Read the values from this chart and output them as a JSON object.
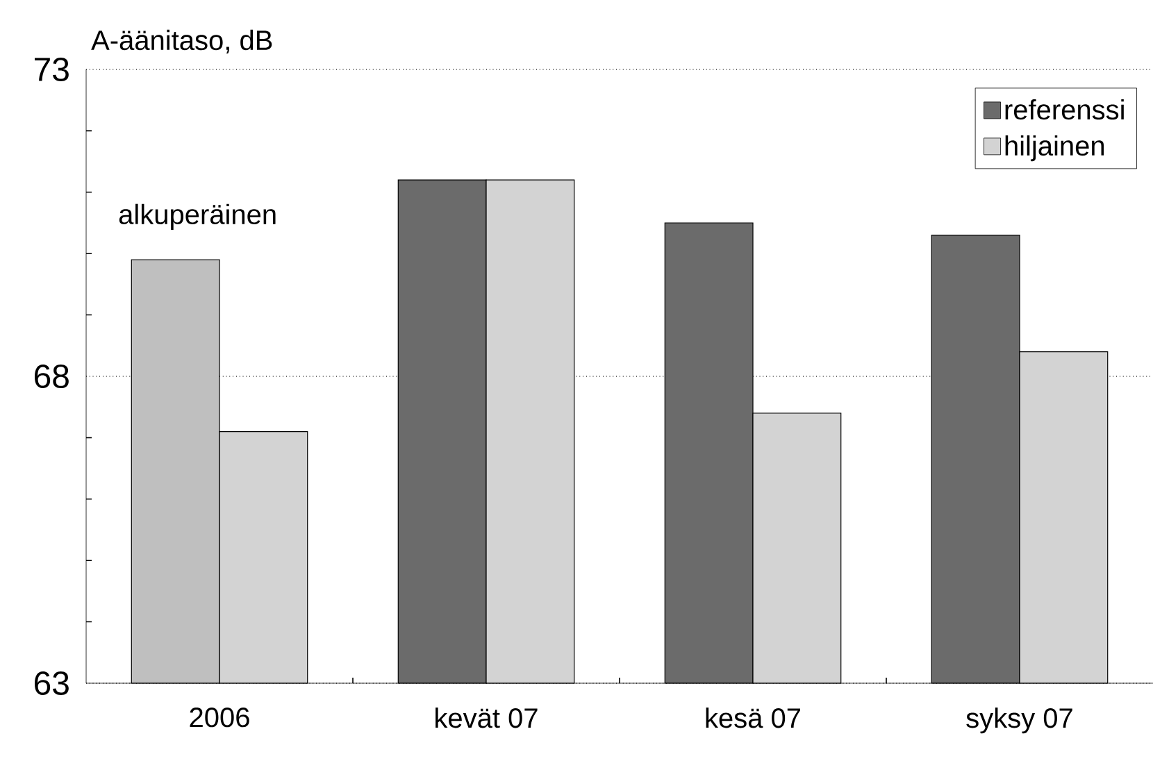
{
  "chart_data": {
    "type": "bar",
    "ylabel": "A-äänitaso, dB",
    "categories": [
      "2006",
      "kevät 07",
      "kesä 07",
      "syksy 07"
    ],
    "series": [
      {
        "name": "referenssi",
        "color": "#6b6b6b",
        "colors": [
          "#bfbfbf",
          "#6b6b6b",
          "#6b6b6b",
          "#6b6b6b"
        ],
        "values": [
          69.9,
          71.2,
          70.5,
          70.3
        ]
      },
      {
        "name": "hiljainen",
        "color": "#d3d3d3",
        "values": [
          67.1,
          71.2,
          67.4,
          68.4
        ]
      }
    ],
    "ylim": [
      63,
      73
    ],
    "yticks": [
      63,
      {
        "value": 64,
        "label": null
      },
      {
        "value": 65,
        "label": null
      },
      {
        "value": 66,
        "label": null
      },
      {
        "value": 67,
        "label": null
      },
      68,
      {
        "value": 69,
        "label": null
      },
      {
        "value": 70,
        "label": null
      },
      {
        "value": 71,
        "label": null
      },
      {
        "value": 72,
        "label": null
      },
      73
    ],
    "grid": "y",
    "legend": "top right",
    "annotations": [
      {
        "text": "alkuperäinen",
        "x": "2006",
        "y": 69.9
      }
    ]
  }
}
